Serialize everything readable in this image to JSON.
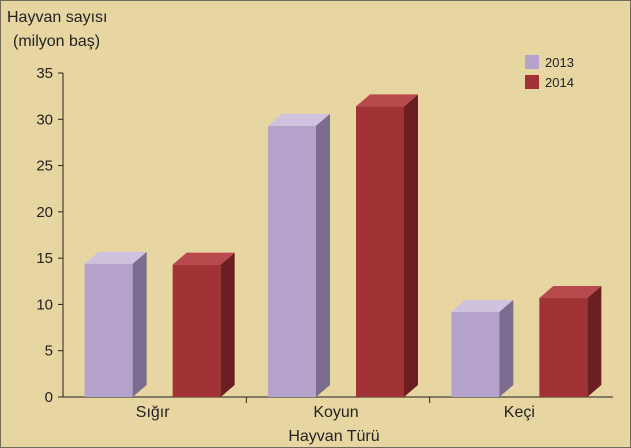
{
  "chart_data": {
    "type": "bar",
    "title": "",
    "ylabel_lines": [
      "Hayvan sayısı",
      "(milyon baş)"
    ],
    "xlabel": "Hayvan Türü",
    "categories": [
      "Sığır",
      "Koyun",
      "Keçi"
    ],
    "series": [
      {
        "name": "2013",
        "values": [
          14.4,
          29.3,
          9.2
        ],
        "color": "#b4a2cb",
        "side_color": "#7a6d8e",
        "top_color": "#cfc2de"
      },
      {
        "name": "2014",
        "values": [
          14.3,
          31.4,
          10.7
        ],
        "color": "#a13236",
        "side_color": "#6b1f22",
        "top_color": "#b84a4e"
      }
    ],
    "y_ticks": [
      0,
      5,
      10,
      15,
      20,
      25,
      30,
      35
    ],
    "ylim": [
      0,
      35
    ],
    "legend_position": "top-right",
    "grid": false,
    "style": "3d-bars"
  }
}
